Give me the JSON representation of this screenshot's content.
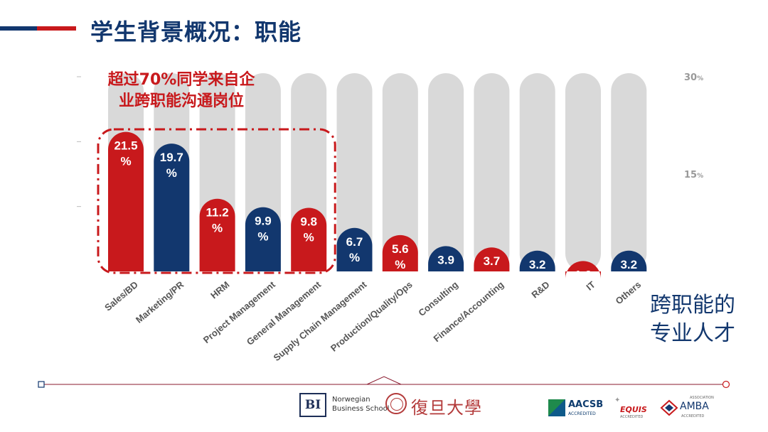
{
  "page": {
    "title": "学生背景概况：职能",
    "callout_line1": "超过70%同学来自企",
    "callout_line2": "业跨职能沟通岗位",
    "side_line1": "跨职能的",
    "side_line2": "专业人才"
  },
  "logos": {
    "bi_mark": "BI",
    "bi_line1": "Norwegian",
    "bi_line2": "Business School",
    "fudan": "復旦大學",
    "aacsb": "AACSB",
    "aacsb_sub": "ACCREDITED",
    "equis": "EQUIS",
    "equis_sub": "ACCREDITED",
    "amba": "AMBA",
    "amba_top": "ASSOCIATION",
    "amba_sub": "ACCREDITED"
  },
  "colors": {
    "navy": "#12376e",
    "red": "#c8191c",
    "track": "#d9d9d9"
  },
  "chart_data": {
    "type": "bar",
    "categories": [
      "Sales/BD",
      "Marketing/PR",
      "HRM",
      "Project Management",
      "General Management",
      "Supply Chain Management",
      "Production/Quality/Ops",
      "Consulting",
      "Finance/Accounting",
      "R&D",
      "IT",
      "Others"
    ],
    "values": [
      21.5,
      19.7,
      11.2,
      9.9,
      9.8,
      6.7,
      5.6,
      3.9,
      3.7,
      3.2,
      1.6,
      3.2
    ],
    "bar_colors": [
      "red",
      "navy",
      "red",
      "navy",
      "red",
      "navy",
      "red",
      "navy",
      "red",
      "navy",
      "red",
      "navy"
    ],
    "data_label_suffix": "%",
    "ylim": [
      0,
      30
    ],
    "y_ticks": [
      {
        "value": 30,
        "label": "30",
        "unit": "%"
      },
      {
        "value": 15,
        "label": "15",
        "unit": "%"
      }
    ],
    "highlight_first_n": 5,
    "grid": false
  }
}
